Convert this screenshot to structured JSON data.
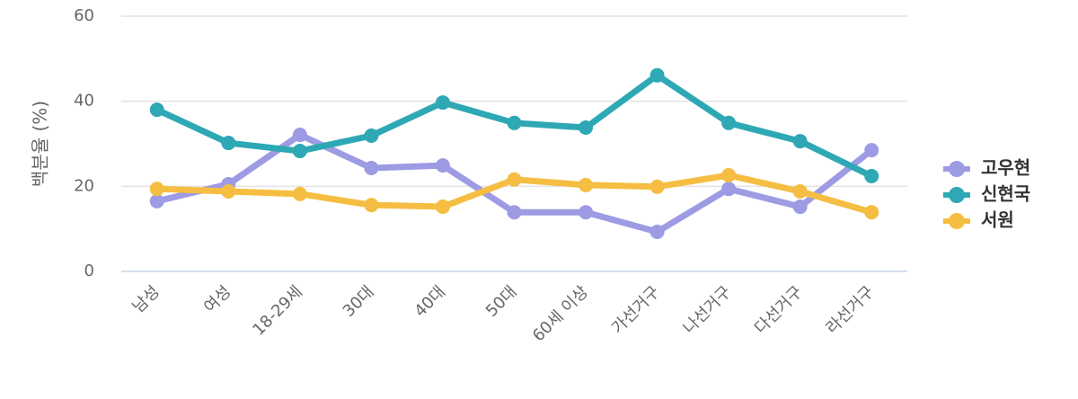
{
  "chart_data": {
    "type": "line",
    "y_label": "백분율 (%)",
    "categories": [
      "남성",
      "여성",
      "18-29세",
      "30대",
      "40대",
      "50대",
      "60세 이상",
      "가선거구",
      "나선거구",
      "다선거구",
      "라선거구"
    ],
    "series": [
      {
        "name": "고우현",
        "color": "#9d9be3",
        "values": [
          16.5,
          20.5,
          32.1,
          24.3,
          24.9,
          13.9,
          13.9,
          9.3,
          19.4,
          15.2,
          28.5
        ]
      },
      {
        "name": "신현국",
        "color": "#2ea8b5",
        "values": [
          38.0,
          30.2,
          28.3,
          31.9,
          39.7,
          34.9,
          33.8,
          46.1,
          34.9,
          30.6,
          22.4
        ]
      },
      {
        "name": "서원",
        "color": "#f5be42",
        "values": [
          19.4,
          18.8,
          18.2,
          15.6,
          15.2,
          21.6,
          20.3,
          19.9,
          22.6,
          18.8,
          13.9
        ]
      }
    ],
    "ylim": [
      0,
      60
    ],
    "yticks": [
      0,
      20,
      40,
      60
    ],
    "grid": true,
    "legend": "right"
  }
}
